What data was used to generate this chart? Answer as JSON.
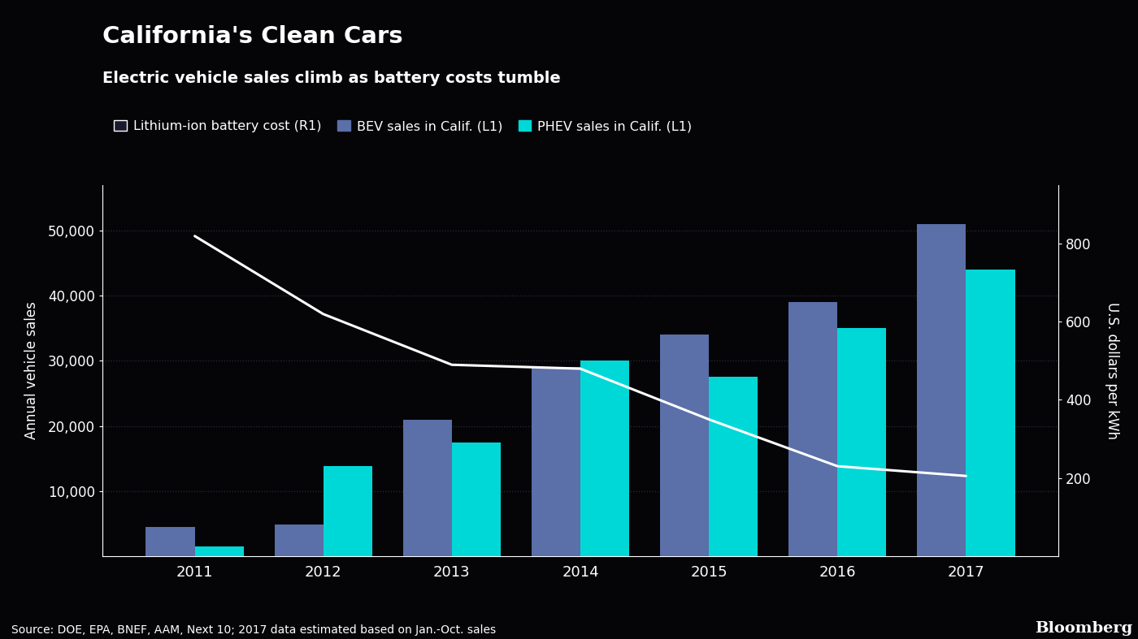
{
  "title": "California's Clean Cars",
  "subtitle": "Electric vehicle sales climb as battery costs tumble",
  "legend_labels": [
    "Lithium-ion battery cost (R1)",
    "BEV sales in Calif. (L1)",
    "PHEV sales in Calif. (L1)"
  ],
  "years": [
    "2011",
    "2012",
    "2013",
    "2014",
    "2015",
    "2016",
    "2017"
  ],
  "bev_sales": [
    4500,
    4800,
    21000,
    29000,
    34000,
    39000,
    51000
  ],
  "phev_sales": [
    1500,
    13800,
    17500,
    30000,
    27500,
    35000,
    44000
  ],
  "battery_cost": [
    820,
    620,
    490,
    480,
    350,
    230,
    205
  ],
  "bar_width": 0.38,
  "bev_color": "#5b6fa8",
  "phev_color": "#00d8d8",
  "line_color": "#ffffff",
  "background_color": "#050508",
  "text_color": "#ffffff",
  "grid_color": "#2a2a3a",
  "ylabel_left": "Annual vehicle sales",
  "ylabel_right": "U.S. dollars per kWh",
  "ylim_left": [
    0,
    57000
  ],
  "ylim_right": [
    0,
    950
  ],
  "yticks_left": [
    10000,
    20000,
    30000,
    40000,
    50000
  ],
  "yticks_right": [
    200,
    400,
    600,
    800
  ],
  "source_text": "Source: DOE, EPA, BNEF, AAM, Next 10; 2017 data estimated based on Jan.-Oct. sales",
  "bloomberg_text": "Bloomberg"
}
